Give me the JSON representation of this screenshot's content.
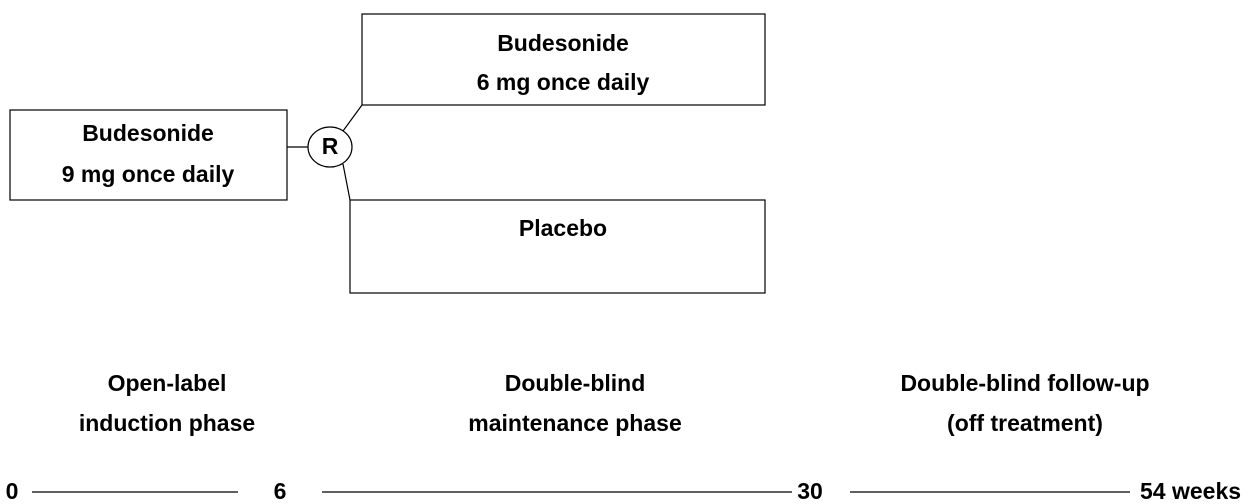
{
  "boxes": [
    {
      "lines": [
        "Budesonide",
        "9 mg once daily"
      ]
    },
    {
      "lines": [
        "Budesonide",
        "6 mg once daily"
      ]
    },
    {
      "lines": [
        "Placebo"
      ]
    }
  ],
  "randomization": "R",
  "phases": [
    {
      "lines": [
        "Open-label",
        "induction phase"
      ]
    },
    {
      "lines": [
        "Double-blind",
        "maintenance phase"
      ]
    },
    {
      "lines": [
        "Double-blind follow-up",
        "(off treatment)"
      ]
    }
  ],
  "timeline": [
    "0",
    "6",
    "30",
    "54 weeks"
  ]
}
